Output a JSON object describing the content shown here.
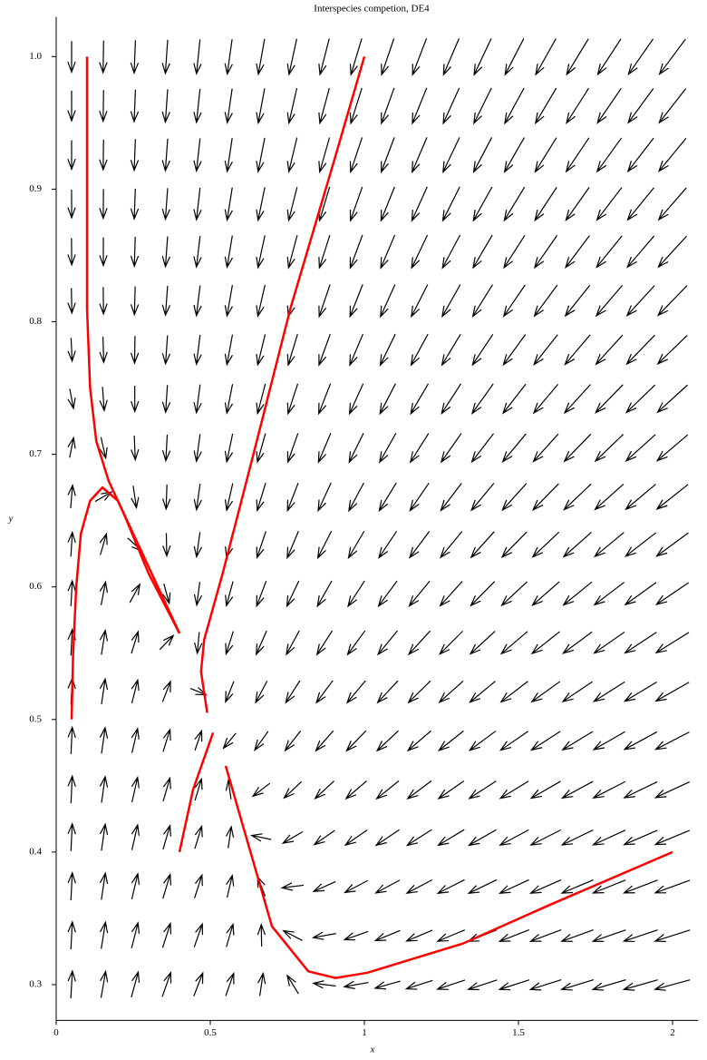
{
  "chart_data": {
    "type": "direction-field",
    "title": "Interspecies competion, DE4",
    "x_label": "x",
    "y_label": "y",
    "xlim": [
      0,
      2.06
    ],
    "ylim": [
      0.273,
      1.03
    ],
    "xticks": [
      0,
      0.5,
      1,
      1.5,
      2
    ],
    "yticks": [
      0.3,
      0.4,
      0.5,
      0.6,
      0.7,
      0.8,
      0.9,
      {
        "value": 1,
        "label": "1.0"
      }
    ],
    "field": {
      "color": "#000000",
      "x": [
        0.05,
        0.153,
        0.255,
        0.358,
        0.461,
        0.563,
        0.666,
        0.768,
        0.871,
        0.974,
        1.076,
        1.179,
        1.282,
        1.384,
        1.487,
        1.589,
        1.692,
        1.795,
        1.897,
        2.0
      ],
      "y": [
        0.3,
        0.337,
        0.374,
        0.411,
        0.447,
        0.484,
        0.521,
        0.558,
        0.595,
        0.632,
        0.668,
        0.705,
        0.742,
        0.779,
        0.816,
        0.853,
        0.889,
        0.926,
        0.963,
        1.0
      ],
      "dx": [
        1,
        -1,
        -1
      ],
      "dy": [
        0.75,
        -0.5,
        -1
      ]
    },
    "series": [
      {
        "color": "#ff0000",
        "x": [
          0.1,
          0.1,
          0.1,
          0.11,
          0.13,
          0.17,
          0.22,
          0.3,
          0.4
        ],
        "y": [
          1.0,
          0.9,
          0.81,
          0.75,
          0.71,
          0.68,
          0.655,
          0.61,
          0.565
        ]
      },
      {
        "color": "#ff0000",
        "x": [
          0.05,
          0.055,
          0.065,
          0.08,
          0.11,
          0.15,
          0.2,
          0.25,
          0.3,
          0.35,
          0.4
        ],
        "y": [
          0.5,
          0.55,
          0.6,
          0.64,
          0.665,
          0.675,
          0.665,
          0.64,
          0.615,
          0.59,
          0.565
        ]
      },
      {
        "color": "#ff0000",
        "x": [
          1.0,
          0.9,
          0.76,
          0.64,
          0.54,
          0.48,
          0.47,
          0.49
        ],
        "y": [
          1.0,
          0.92,
          0.81,
          0.7,
          0.61,
          0.56,
          0.536,
          0.505
        ]
      },
      {
        "color": "#ff0000",
        "x": [
          0.4,
          0.444,
          0.509
        ],
        "y": [
          0.4,
          0.447,
          0.49
        ]
      },
      {
        "color": "#ff0000",
        "x": [
          0.55,
          0.597,
          0.7,
          0.818,
          0.906,
          1.01,
          1.32,
          1.6,
          2.0
        ],
        "y": [
          0.465,
          0.427,
          0.344,
          0.31,
          0.305,
          0.309,
          0.331,
          0.36,
          0.4
        ]
      }
    ]
  }
}
